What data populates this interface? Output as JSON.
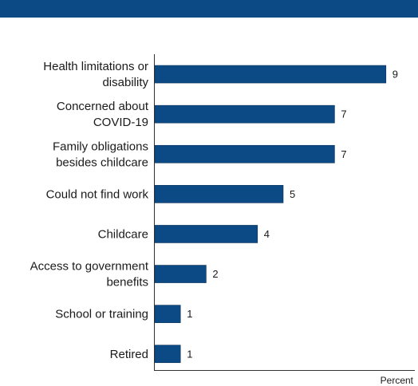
{
  "header": {
    "title": ""
  },
  "chart_data": {
    "type": "bar",
    "orientation": "horizontal",
    "categories": [
      [
        "Health limitations or",
        "disability"
      ],
      [
        "Concerned about",
        "COVID-19"
      ],
      [
        "Family obligations",
        "besides childcare"
      ],
      [
        "Could not find work"
      ],
      [
        "Childcare"
      ],
      [
        "Access to government",
        "benefits"
      ],
      [
        "School or training"
      ],
      [
        "Retired"
      ]
    ],
    "values": [
      9,
      7,
      7,
      5,
      4,
      2,
      1,
      1
    ],
    "xlabel": "Percent",
    "xlim": [
      0,
      10
    ],
    "bar_color": "#0b4a85",
    "grid": false,
    "data_labels": true
  }
}
